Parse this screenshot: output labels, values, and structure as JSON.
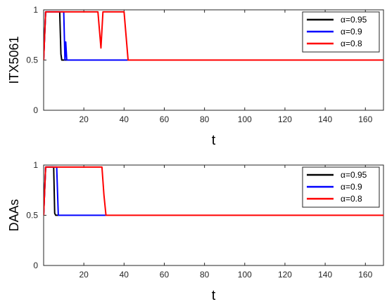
{
  "chart_data": [
    {
      "type": "line",
      "xlabel": "t",
      "ylabel": "ITX5061",
      "xlim": [
        0,
        169
      ],
      "ylim": [
        0,
        1
      ],
      "x_ticks": [
        "20",
        "40",
        "60",
        "80",
        "100",
        "120",
        "140",
        "160"
      ],
      "y_ticks": [
        "0",
        "0.5",
        "1"
      ],
      "grid": false,
      "legend_position": "top-right",
      "series": [
        {
          "name": "α=0.95",
          "color": "#000000",
          "points": [
            [
              0,
              0.5
            ],
            [
              1,
              0.98
            ],
            [
              8,
              0.98
            ],
            [
              8.6,
              0.56
            ],
            [
              9,
              0.5
            ],
            [
              169,
              0.5
            ]
          ]
        },
        {
          "name": "α=0.9",
          "color": "#0000ff",
          "points": [
            [
              0,
              0.5
            ],
            [
              1,
              0.98
            ],
            [
              10,
              0.98
            ],
            [
              10.6,
              0.5
            ],
            [
              11,
              0.68
            ],
            [
              11.5,
              0.5
            ],
            [
              169,
              0.5
            ]
          ]
        },
        {
          "name": "α=0.8",
          "color": "#ff0000",
          "points": [
            [
              0,
              0.5
            ],
            [
              1,
              0.98
            ],
            [
              27,
              0.98
            ],
            [
              28.5,
              0.62
            ],
            [
              29.5,
              0.98
            ],
            [
              40,
              0.98
            ],
            [
              42,
              0.5
            ],
            [
              169,
              0.5
            ]
          ]
        }
      ]
    },
    {
      "type": "line",
      "xlabel": "t",
      "ylabel": "DAAs",
      "xlim": [
        0,
        169
      ],
      "ylim": [
        0,
        1
      ],
      "x_ticks": [
        "20",
        "40",
        "60",
        "80",
        "100",
        "120",
        "140",
        "160"
      ],
      "y_ticks": [
        "0",
        "0.5",
        "1"
      ],
      "grid": false,
      "legend_position": "top-right",
      "series": [
        {
          "name": "α=0.95",
          "color": "#000000",
          "points": [
            [
              0,
              0.5
            ],
            [
              1,
              0.98
            ],
            [
              5,
              0.98
            ],
            [
              5.5,
              0.52
            ],
            [
              6,
              0.5
            ],
            [
              169,
              0.5
            ]
          ]
        },
        {
          "name": "α=0.9",
          "color": "#0000ff",
          "points": [
            [
              0,
              0.5
            ],
            [
              1,
              0.98
            ],
            [
              6.5,
              0.98
            ],
            [
              7.3,
              0.5
            ],
            [
              169,
              0.5
            ]
          ]
        },
        {
          "name": "α=0.8",
          "color": "#ff0000",
          "points": [
            [
              0,
              0.5
            ],
            [
              1,
              0.98
            ],
            [
              29,
              0.98
            ],
            [
              30,
              0.7
            ],
            [
              31,
              0.5
            ],
            [
              169,
              0.5
            ]
          ]
        }
      ]
    }
  ]
}
